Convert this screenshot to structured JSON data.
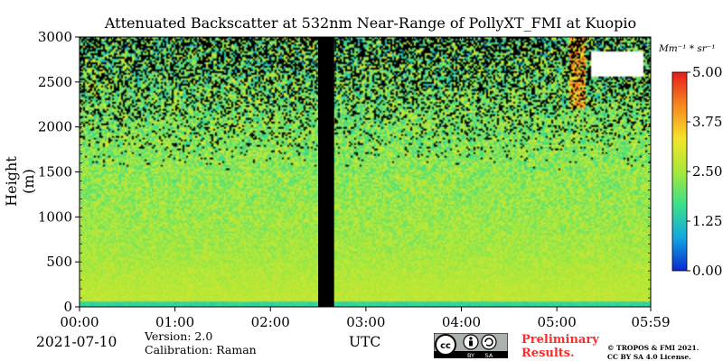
{
  "chart_data": {
    "type": "heatmap",
    "title": "Attenuated Backscatter at 532nm Near-Range of PollyXT_FMI at Kuopio",
    "xlabel": "UTC",
    "ylabel": "Height (m)",
    "x_ticks": [
      "00:00",
      "01:00",
      "02:00",
      "03:00",
      "04:00",
      "05:00",
      "05:59"
    ],
    "y_ticks": [
      "0",
      "500",
      "1000",
      "1500",
      "2000",
      "2500",
      "3000"
    ],
    "ylim": [
      0,
      3000
    ],
    "colorbar": {
      "unit": "Mm⁻¹ * sr⁻¹",
      "ticks": [
        "0.00",
        "1.25",
        "2.50",
        "3.75",
        "5.00"
      ],
      "range": [
        0,
        5
      ],
      "colormap": [
        "#0a2bd1",
        "#12a8e0",
        "#3ce08a",
        "#a8e83a",
        "#f5e42a",
        "#f58a1f",
        "#e81e1e"
      ]
    },
    "data_gap": {
      "start": "02:30",
      "end": "02:40"
    },
    "date": "2021-07-10",
    "version": "Version: 2.0",
    "calibration": "Calibration: Raman",
    "preliminary": [
      "Preliminary",
      "Results."
    ],
    "copyright": [
      "© TROPOS & FMI 2021.",
      "CC BY SA 4.0 License."
    ],
    "license_badge": [
      "cc",
      "BY",
      "SA"
    ]
  }
}
